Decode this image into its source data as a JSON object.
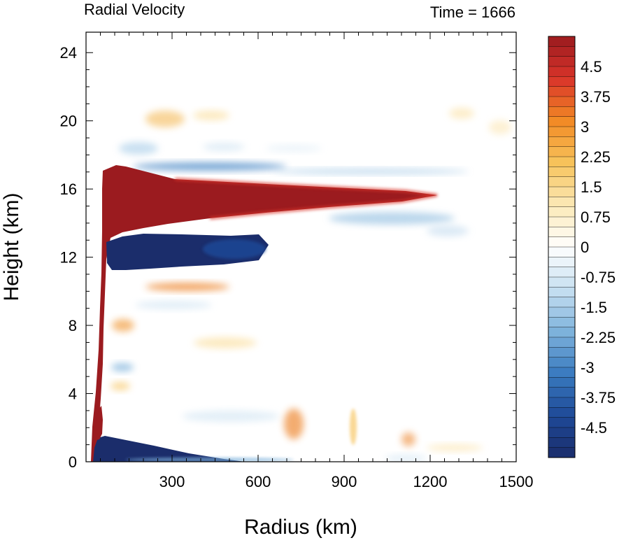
{
  "chart_data": {
    "type": "heatmap",
    "title_left": "Radial Velocity",
    "title_right": "Time = 1666",
    "xlabel": "Radius (km)",
    "ylabel": "Height (km)",
    "xlim": [
      0,
      1500
    ],
    "ylim": [
      0,
      25.2
    ],
    "xticks": [
      300,
      600,
      900,
      1200,
      1500
    ],
    "yticks": [
      0,
      4,
      8,
      12,
      16,
      20,
      24
    ],
    "grid": false,
    "colorbar": {
      "placement": "right",
      "vmin": -5.25,
      "vmax": 5.25,
      "step": 0.25,
      "labels": [
        "4.5",
        "3.75",
        "3",
        "2.25",
        "1.5",
        "0.75",
        "0",
        "-0.75",
        "-1.5",
        "-2.25",
        "-3",
        "-3.75",
        "-4.5"
      ],
      "colors": [
        "#1b2d6b",
        "#1f4a98",
        "#3a7bc0",
        "#7fb3dc",
        "#c7e0f1",
        "#ffffff",
        "#fbe9b6",
        "#f7c35b",
        "#f28a25",
        "#d9342a",
        "#9b1b1f"
      ]
    },
    "features": [
      {
        "name": "upper outflow jet",
        "sign": "positive",
        "value": 5.25,
        "r_range": [
          30,
          1240
        ],
        "z_center": 15.5
      },
      {
        "name": "inflow below outflow",
        "sign": "negative",
        "value": -5.25,
        "r_range": [
          50,
          620
        ],
        "z_center": 12.3
      },
      {
        "name": "boundary layer inflow",
        "sign": "negative",
        "value": -5.25,
        "r_range": [
          25,
          460
        ],
        "z_center": 0.4
      },
      {
        "name": "low-level outflow",
        "sign": "positive",
        "value": 5.25,
        "r_range": [
          25,
          90
        ],
        "z_center": 2.5
      },
      {
        "name": "inflow near 17 km",
        "sign": "negative",
        "value": -2.5,
        "r_range": [
          150,
          1000
        ],
        "z_center": 17.3
      },
      {
        "name": "weak outflow near 20 km",
        "sign": "positive",
        "value": 1.5,
        "r_range": [
          150,
          700
        ],
        "z_center": 20.2
      },
      {
        "name": "weak outflow near 10 km",
        "sign": "positive",
        "value": 2.0,
        "r_range": [
          110,
          460
        ],
        "z_center": 10.2
      },
      {
        "name": "weak inflow near 14 km",
        "sign": "negative",
        "value": -1.5,
        "r_range": [
          600,
          1350
        ],
        "z_center": 14.2
      }
    ]
  }
}
